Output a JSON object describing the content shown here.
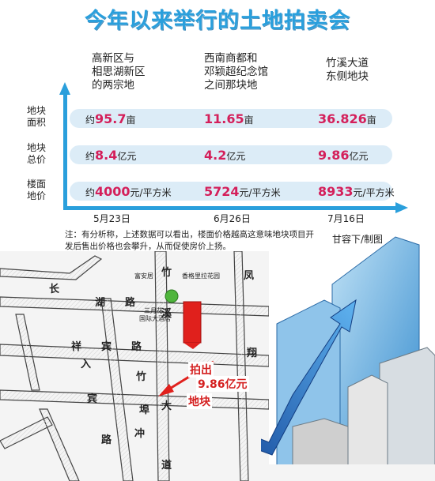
{
  "title": "今年以来举行的土地拍卖会",
  "columns": [
    {
      "line1": "高新区与",
      "line2": "相思湖新区",
      "line3": "的两宗地"
    },
    {
      "line1": "西南商都和",
      "line2": "邓颖超纪念馆",
      "line3": "之间那块地"
    },
    {
      "line1": "竹溪大道",
      "line2": "东侧地块",
      "line3": ""
    }
  ],
  "rows": [
    {
      "label1": "地块",
      "label2": "面积",
      "cells": [
        {
          "prefix": "约",
          "value": "95.7",
          "unit": "亩"
        },
        {
          "prefix": "",
          "value": "11.65",
          "unit": "亩"
        },
        {
          "prefix": "",
          "value": "36.826",
          "unit": "亩"
        }
      ]
    },
    {
      "label1": "地块",
      "label2": "总价",
      "cells": [
        {
          "prefix": "约",
          "value": "8.4",
          "unit": "亿元"
        },
        {
          "prefix": "",
          "value": "4.2",
          "unit": "亿元"
        },
        {
          "prefix": "",
          "value": "9.86",
          "unit": "亿元"
        }
      ]
    },
    {
      "label1": "楼面",
      "label2": "地价",
      "cells": [
        {
          "prefix": "约",
          "value": "4000",
          "unit": "元/平方米"
        },
        {
          "prefix": "",
          "value": "5724",
          "unit": "元/平方米"
        },
        {
          "prefix": "",
          "value": "8933",
          "unit": "元/平方米"
        }
      ]
    }
  ],
  "dates": [
    "5月23日",
    "6月26日",
    "7月16日"
  ],
  "note": "注：有分析称，上述数据可以看出，楼面价格越高这意味地块项目开发后售出价格也会攀升，从而促使房价上扬。",
  "credit": "甘容下/制图",
  "map": {
    "road_changhu": [
      "长",
      "湖",
      "路"
    ],
    "road_xiangbin": [
      "祥",
      "宾",
      "路"
    ],
    "road_zhuxi": [
      "竹",
      "溪",
      "大",
      "道"
    ],
    "road_fengxiang": [
      "凤",
      "翔"
    ],
    "road_zhuxi_lower": [
      "竹",
      "溪"
    ],
    "road_xiangbin_lower": [
      "祥",
      "宾"
    ],
    "road_zhu2": [
      "竹"
    ],
    "road_lu2": [
      "路"
    ],
    "road_fu": [
      "埠"
    ],
    "road_chong": [
      "冲"
    ],
    "road_ru": [
      "入"
    ],
    "lbl_fuanju": "富安居",
    "lbl_xiangge": "香格里拉花园",
    "lbl_sanyue": "三月花",
    "lbl_guoji": "国际大酒店",
    "highlight": {
      "line1": "拍出",
      "line2": "9.86亿元",
      "line3": "地块"
    }
  },
  "colors": {
    "accent": "#2a9fdc",
    "value": "#d41f5a",
    "plot": "#e0201c"
  }
}
